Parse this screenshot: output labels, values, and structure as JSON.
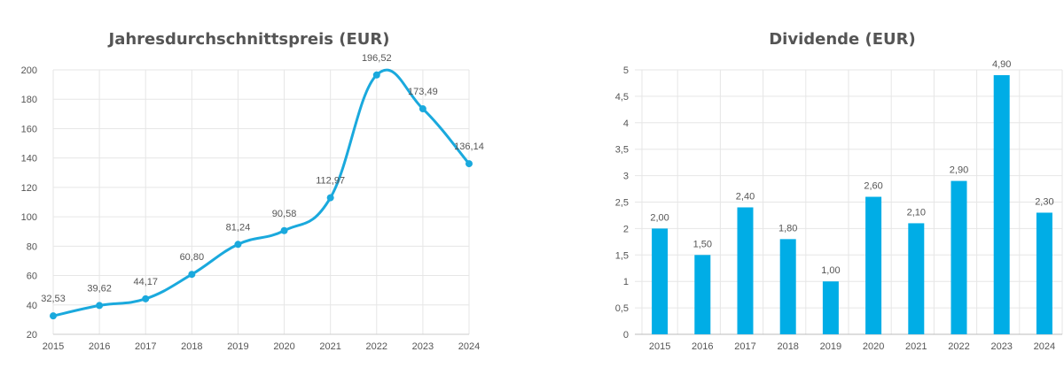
{
  "chart_data": [
    {
      "type": "line",
      "title": "Jahresdurchschnittspreis (EUR)",
      "categories": [
        "2015",
        "2016",
        "2017",
        "2018",
        "2019",
        "2020",
        "2021",
        "2022",
        "2023",
        "2024"
      ],
      "values": [
        32.53,
        39.62,
        44.17,
        60.8,
        81.24,
        90.58,
        112.97,
        196.52,
        173.49,
        136.14
      ],
      "data_labels": [
        "32,53",
        "39,62",
        "44,17",
        "60,80",
        "81,24",
        "90,58",
        "112,97",
        "196,52",
        "173,49",
        "136,14"
      ],
      "ylim": [
        20,
        200
      ],
      "yticks": [
        "20",
        "40",
        "60",
        "80",
        "100",
        "120",
        "140",
        "160",
        "180",
        "200"
      ],
      "grid": true,
      "smooth": true,
      "color": "#1aa9dd"
    },
    {
      "type": "bar",
      "title": "Dividende (EUR)",
      "categories": [
        "2015",
        "2016",
        "2017",
        "2018",
        "2019",
        "2020",
        "2021",
        "2022",
        "2023",
        "2024"
      ],
      "values": [
        2.0,
        1.5,
        2.4,
        1.8,
        1.0,
        2.6,
        2.1,
        2.9,
        4.9,
        2.3
      ],
      "data_labels": [
        "2,00",
        "1,50",
        "2,40",
        "1,80",
        "1,00",
        "2,60",
        "2,10",
        "2,90",
        "4,90",
        "2,30"
      ],
      "ylim": [
        0,
        5
      ],
      "yticks": [
        "0",
        "0,5",
        "1",
        "1,5",
        "2",
        "2,5",
        "3",
        "3,5",
        "4",
        "4,5",
        "5"
      ],
      "grid": true,
      "color": "#00ade6"
    }
  ]
}
